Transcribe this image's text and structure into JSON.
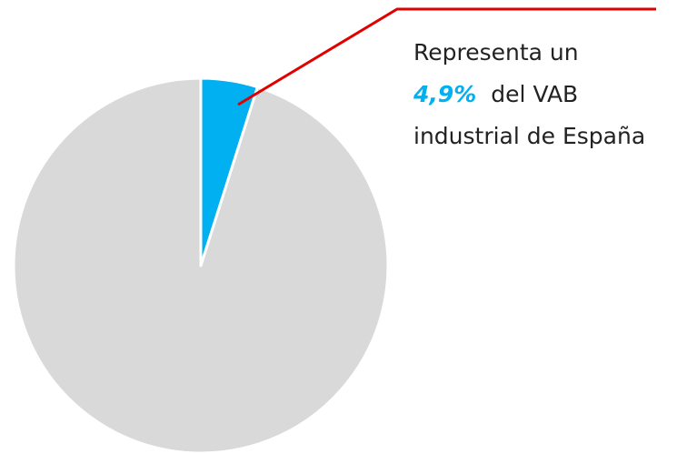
{
  "chart_data": {
    "type": "pie",
    "values": [
      4.9,
      95.1
    ],
    "value_labels": [
      "4,9%",
      null
    ],
    "colors": [
      "#00b0f0",
      "#d9d9d9"
    ],
    "annotation": [
      "Representa un",
      "del VAB",
      "industrial de España"
    ]
  }
}
